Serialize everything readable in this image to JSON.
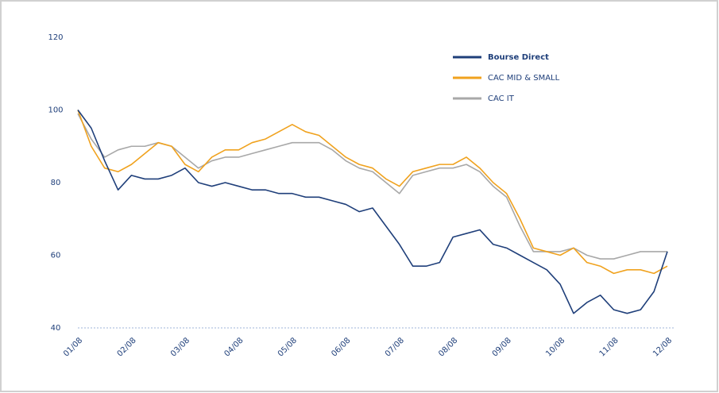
{
  "chart_data": {
    "type": "line",
    "categories": [
      "01/08",
      null,
      null,
      null,
      "02/08",
      null,
      null,
      null,
      "03/08",
      null,
      null,
      null,
      "04/08",
      null,
      null,
      null,
      "05/08",
      null,
      null,
      null,
      "06/08",
      null,
      null,
      null,
      "07/08",
      null,
      null,
      null,
      "08/08",
      null,
      null,
      null,
      "09/08",
      null,
      null,
      null,
      "10/08",
      null,
      null,
      null,
      "11/08",
      null,
      null,
      null,
      "12/08"
    ],
    "series": [
      {
        "name": "Bourse Direct",
        "color": "#1f3f7a",
        "values": [
          100,
          95,
          86,
          78,
          82,
          81,
          81,
          82,
          84,
          80,
          79,
          80,
          79,
          78,
          78,
          77,
          77,
          76,
          76,
          75,
          74,
          72,
          73,
          68,
          63,
          57,
          57,
          58,
          65,
          66,
          67,
          63,
          62,
          60,
          58,
          56,
          52,
          44,
          47,
          49,
          45,
          44,
          45,
          50,
          61
        ]
      },
      {
        "name": "CAC MID & SMALL",
        "color": "#f0a21e",
        "values": [
          100,
          90,
          84,
          83,
          85,
          88,
          91,
          90,
          85,
          83,
          87,
          89,
          89,
          91,
          92,
          94,
          96,
          94,
          93,
          90,
          87,
          85,
          84,
          81,
          79,
          83,
          84,
          85,
          85,
          87,
          84,
          80,
          77,
          70,
          62,
          61,
          60,
          62,
          58,
          57,
          55,
          56,
          56,
          55,
          57
        ]
      },
      {
        "name": "CAC IT",
        "color": "#a8a8a8",
        "values": [
          99,
          92,
          87,
          89,
          90,
          90,
          91,
          90,
          87,
          84,
          86,
          87,
          87,
          88,
          89,
          90,
          91,
          91,
          91,
          89,
          86,
          84,
          83,
          80,
          77,
          82,
          83,
          84,
          84,
          85,
          83,
          79,
          76,
          68,
          61,
          61,
          61,
          62,
          60,
          59,
          59,
          60,
          61,
          61,
          61
        ]
      }
    ],
    "ylim": [
      40,
      120
    ],
    "yticks": [
      40,
      60,
      80,
      100,
      120
    ],
    "legend": "upper-right"
  }
}
